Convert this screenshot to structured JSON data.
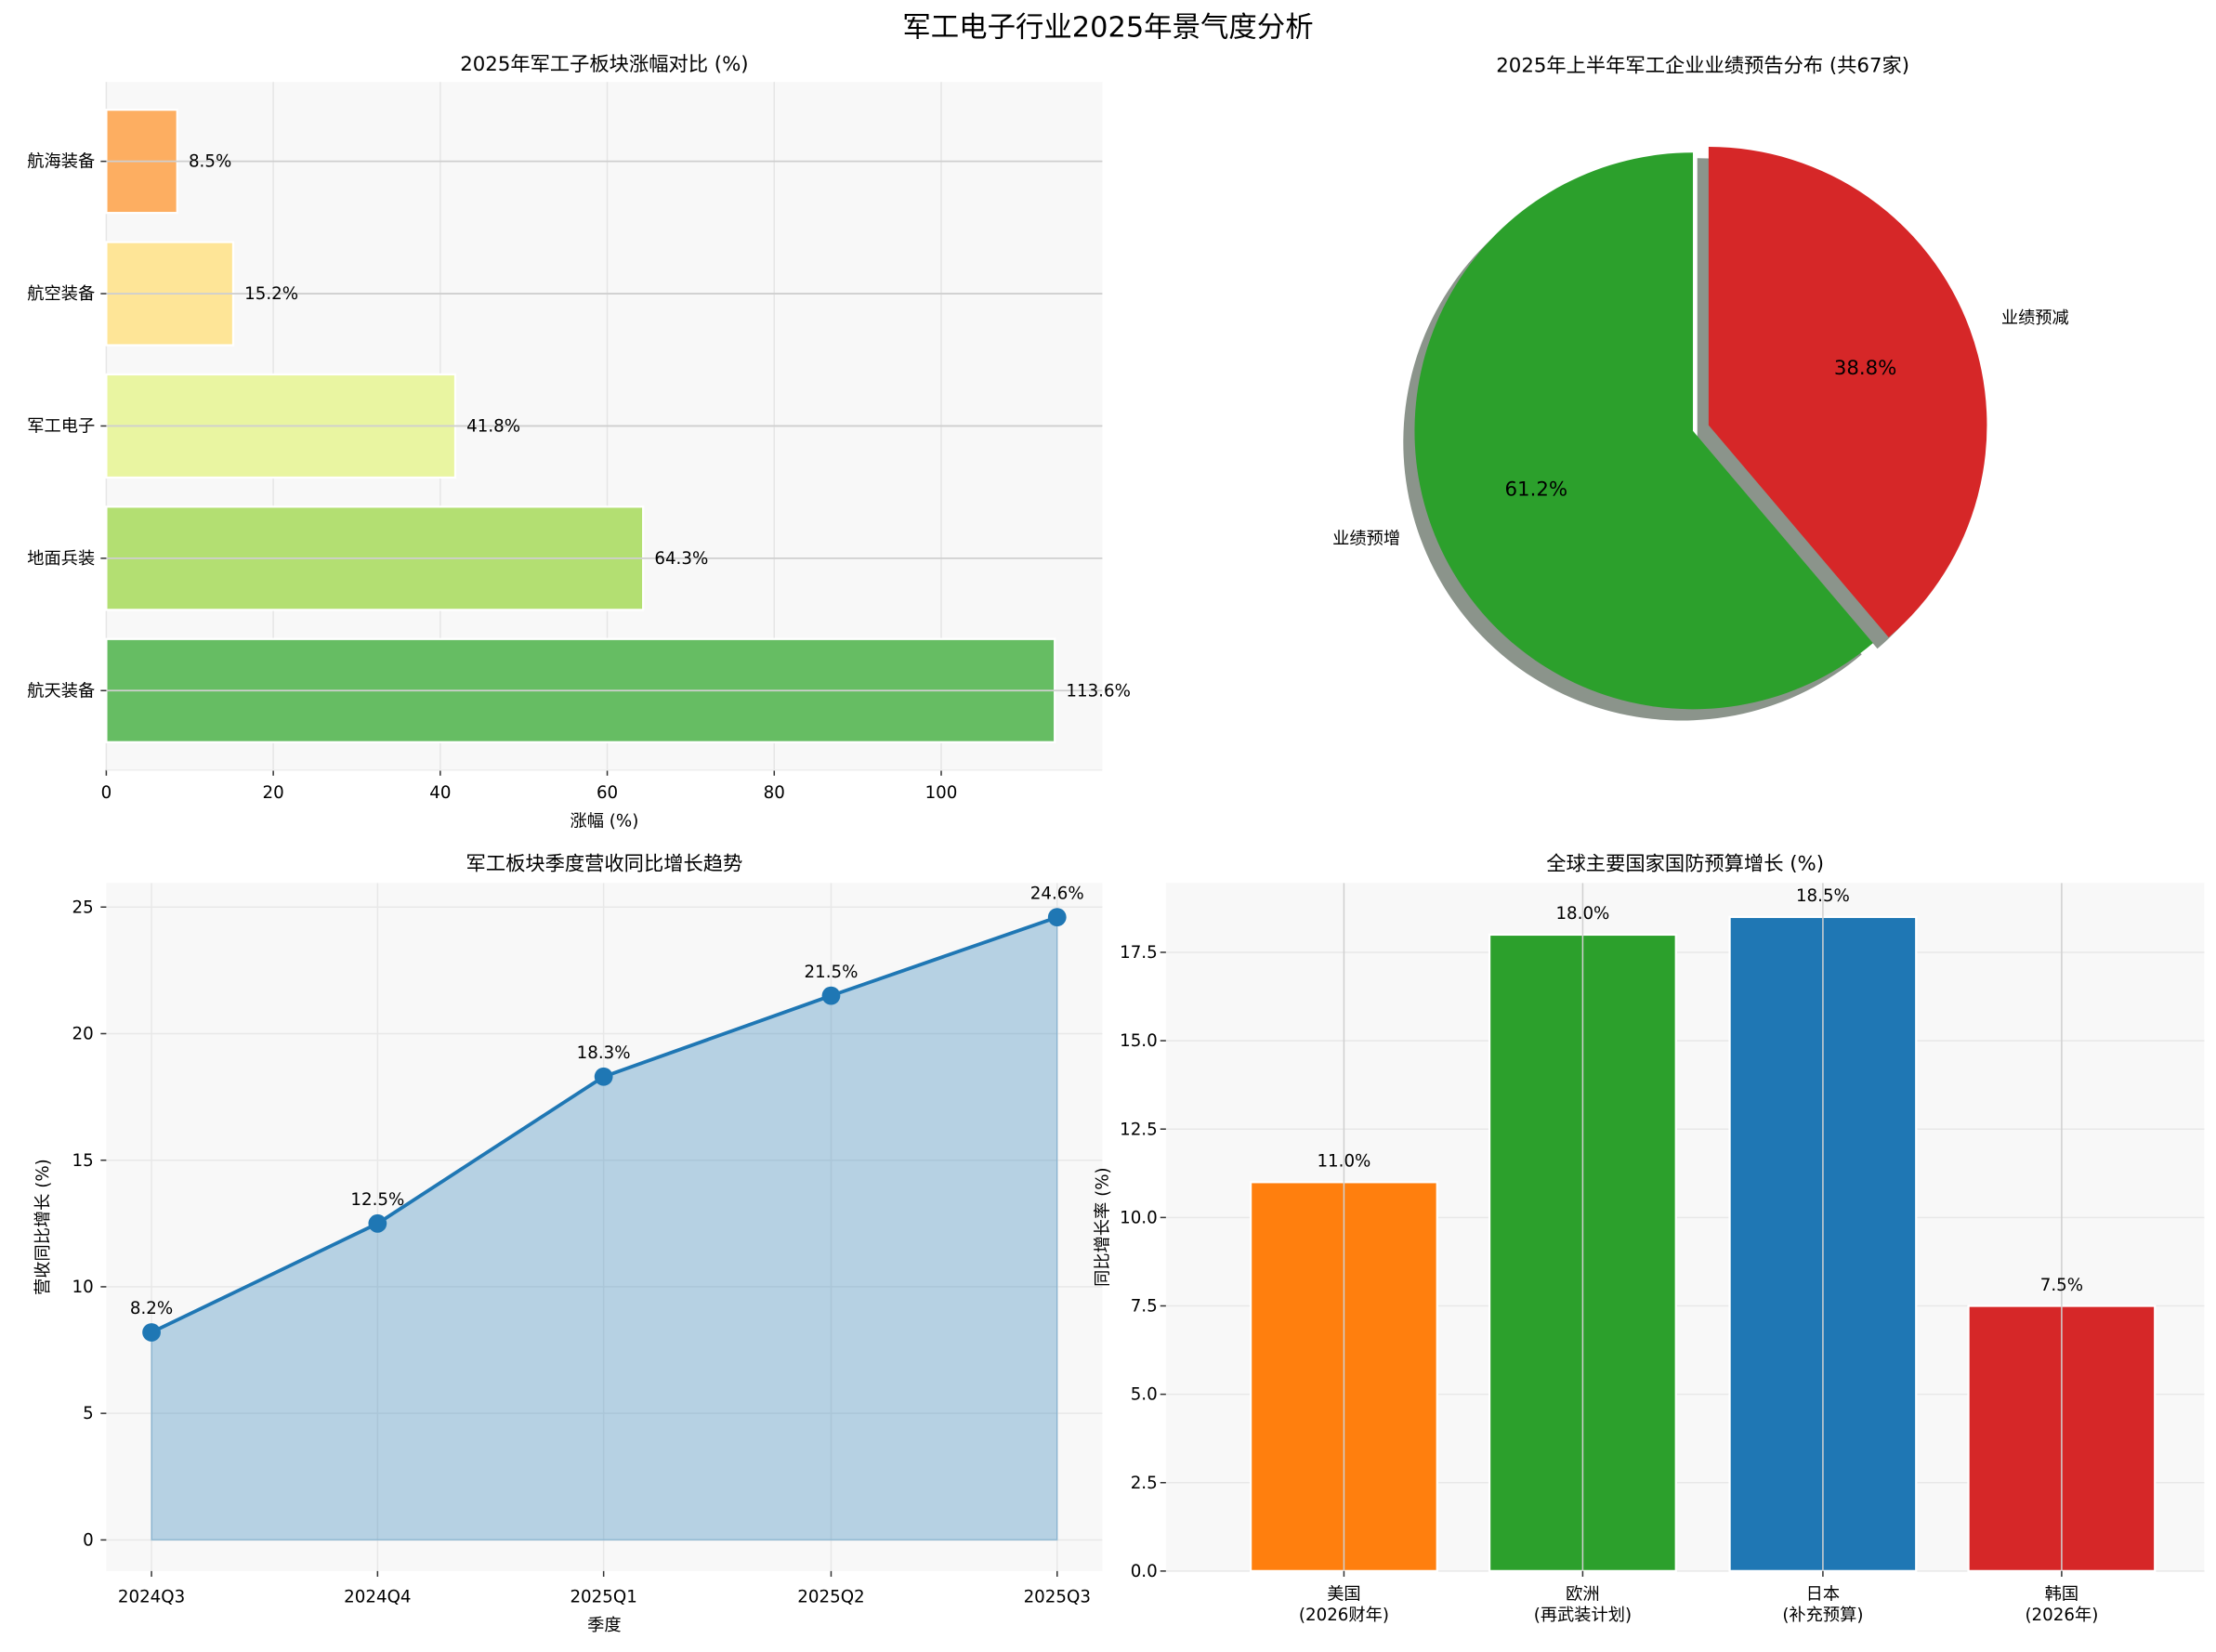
{
  "suptitle": "军工电子行业2025年景气度分析",
  "chart_data": [
    {
      "type": "bar",
      "orientation": "horizontal",
      "title": "2025年军工子板块涨幅对比 (%)",
      "xlabel": "涨幅 (%)",
      "ylabel": "",
      "categories": [
        "航天装备",
        "地面兵装",
        "军工电子",
        "航空装备",
        "航海装备"
      ],
      "values": [
        113.6,
        64.3,
        41.8,
        15.2,
        8.5
      ],
      "data_labels": [
        "113.6%",
        "64.3%",
        "41.8%",
        "15.2%",
        "8.5%"
      ],
      "colors": [
        "#66bd63",
        "#b3df72",
        "#e9f5a1",
        "#fee597",
        "#fdae61"
      ],
      "xlim": [
        0,
        119.3
      ],
      "xticks": [
        0,
        20,
        40,
        60,
        80,
        100
      ],
      "grid": true
    },
    {
      "type": "pie",
      "title": "2025年上半年军工企业业绩预告分布 (共67家)",
      "labels": [
        "业绩预增",
        "业绩预减"
      ],
      "values": [
        61.2,
        38.8
      ],
      "pct_labels": [
        "61.2%",
        "38.8%"
      ],
      "colors": [
        "#2ca02c",
        "#d62728"
      ],
      "exploded": [
        false,
        true
      ],
      "shadow": true
    },
    {
      "type": "area",
      "title": "军工板块季度营收同比增长趋势",
      "xlabel": "季度",
      "ylabel": "营收同比增长 (%)",
      "categories": [
        "2024Q3",
        "2024Q4",
        "2025Q1",
        "2025Q2",
        "2025Q3"
      ],
      "values": [
        8.2,
        12.5,
        18.3,
        21.5,
        24.6
      ],
      "data_labels": [
        "8.2%",
        "12.5%",
        "18.3%",
        "21.5%",
        "24.6%"
      ],
      "color": "#1f77b4",
      "ylim": [
        -1.23,
        25.95
      ],
      "yticks": [
        0,
        5,
        10,
        15,
        20,
        25
      ],
      "grid": true
    },
    {
      "type": "bar",
      "title": "全球主要国家国防预算增长 (%)",
      "xlabel": "",
      "ylabel": "同比增长率 (%)",
      "categories": [
        [
          "美国",
          "(2026财年)"
        ],
        [
          "欧洲",
          "(再武装计划)"
        ],
        [
          "日本",
          "(补充预算)"
        ],
        [
          "韩国",
          "(2026年)"
        ]
      ],
      "values": [
        11.0,
        18.0,
        18.5,
        7.5
      ],
      "data_labels": [
        "11.0%",
        "18.0%",
        "18.5%",
        "7.5%"
      ],
      "colors": [
        "#ff7f0e",
        "#2ca02c",
        "#1f77b4",
        "#d62728"
      ],
      "ylim": [
        0,
        19.46
      ],
      "yticks": [
        "0.0",
        "2.5",
        "5.0",
        "7.5",
        "10.0",
        "12.5",
        "15.0",
        "17.5"
      ],
      "grid": true
    }
  ]
}
